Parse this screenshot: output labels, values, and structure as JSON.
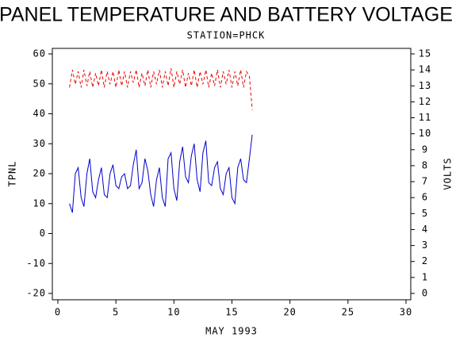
{
  "chart_data": {
    "type": "line",
    "title": "PANEL TEMPERATURE AND BATTERY VOLTAGE",
    "subtitle": "STATION=PHCK",
    "x_label": "MAY 1993",
    "y_label": "TPNL",
    "y2_label": "VOLTS",
    "x": [
      1,
      1.25,
      1.5,
      1.75,
      2,
      2.25,
      2.5,
      2.75,
      3,
      3.25,
      3.5,
      3.75,
      4,
      4.25,
      4.5,
      4.75,
      5,
      5.25,
      5.5,
      5.75,
      6,
      6.25,
      6.5,
      6.75,
      7,
      7.25,
      7.5,
      7.75,
      8,
      8.25,
      8.5,
      8.75,
      9,
      9.25,
      9.5,
      9.75,
      10,
      10.25,
      10.5,
      10.75,
      11,
      11.25,
      11.5,
      11.75,
      12,
      12.25,
      12.5,
      12.75,
      13,
      13.25,
      13.5,
      13.75,
      14,
      14.25,
      14.5,
      14.75,
      15,
      15.25,
      15.5,
      15.75,
      16,
      16.25,
      16.5,
      16.75
    ],
    "series": [
      {
        "name": "TPNL",
        "color": "#0000cc",
        "dash": false,
        "values": [
          10,
          7,
          20,
          22,
          12,
          9,
          20,
          25,
          14,
          12,
          18,
          22,
          13,
          12,
          20,
          23,
          16,
          15,
          19,
          20,
          15,
          16,
          23,
          28,
          15,
          17,
          25,
          21,
          13,
          9,
          18,
          22,
          12,
          9,
          25,
          27,
          15,
          11,
          24,
          29,
          19,
          17,
          26,
          30,
          18,
          14,
          27,
          31,
          17,
          16,
          22,
          24,
          15,
          13,
          20,
          22,
          12,
          10,
          22,
          25,
          18,
          17,
          25,
          33
        ]
      },
      {
        "name": "VOLTS",
        "color": "#ee0000",
        "dash": true,
        "axis": "y2",
        "values": [
          12.9,
          14.0,
          13.1,
          13.9,
          12.9,
          14.0,
          13.0,
          13.9,
          12.9,
          13.8,
          13.0,
          14.0,
          12.9,
          13.9,
          13.1,
          13.9,
          12.9,
          14.0,
          13.0,
          13.9,
          12.9,
          13.9,
          13.2,
          14.0,
          12.9,
          13.8,
          13.0,
          14.0,
          12.9,
          13.9,
          13.1,
          14.0,
          12.9,
          13.9,
          13.0,
          14.1,
          12.9,
          13.9,
          13.1,
          14.0,
          12.9,
          13.8,
          13.0,
          14.0,
          12.9,
          13.9,
          13.1,
          14.0,
          12.9,
          13.8,
          13.0,
          14.0,
          12.9,
          13.9,
          13.1,
          14.0,
          12.9,
          13.9,
          13.0,
          14.0,
          12.9,
          13.9,
          13.6,
          11.5
        ]
      }
    ],
    "xlim": [
      0,
      30
    ],
    "xticks": [
      0,
      5,
      10,
      15,
      20,
      25,
      30
    ],
    "ylim": [
      -20,
      60
    ],
    "yticks": [
      -20,
      -10,
      0,
      10,
      20,
      30,
      40,
      50,
      60
    ],
    "y2lim": [
      0,
      15
    ],
    "y2ticks": [
      0,
      1,
      2,
      3,
      4,
      5,
      6,
      7,
      8,
      9,
      10,
      11,
      12,
      13,
      14,
      15
    ]
  }
}
